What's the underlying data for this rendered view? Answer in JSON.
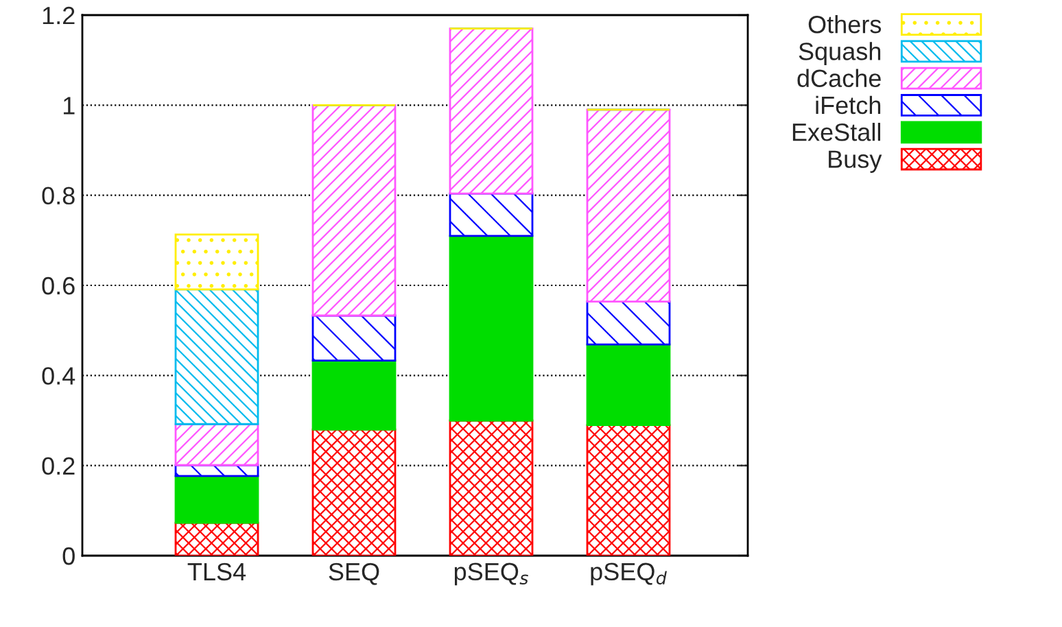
{
  "chart_data": {
    "type": "bar",
    "stacked": true,
    "categories": [
      "TLS4",
      "SEQ",
      "pSEQ$_{s}$",
      "pSEQ$_{d}$"
    ],
    "series": [
      {
        "name": "Busy",
        "color": "#ff0000",
        "values": [
          0.073,
          0.28,
          0.3,
          0.29
        ]
      },
      {
        "name": "ExeStall",
        "color": "#00dd00",
        "values": [
          0.104,
          0.153,
          0.41,
          0.179
        ]
      },
      {
        "name": "iFetch",
        "color": "#0000ff",
        "values": [
          0.024,
          0.1,
          0.094,
          0.095
        ]
      },
      {
        "name": "dCache",
        "color": "#ff55ff",
        "values": [
          0.091,
          0.467,
          0.366,
          0.426
        ]
      },
      {
        "name": "Squash",
        "color": "#00bbee",
        "values": [
          0.299,
          0,
          0,
          0
        ]
      },
      {
        "name": "Others",
        "color": "#ffee00",
        "values": [
          0.122,
          0,
          0,
          0
        ]
      }
    ],
    "ylim": [
      0,
      1.2
    ],
    "yticks": [
      0,
      0.2,
      0.4,
      0.6,
      0.8,
      1,
      1.2
    ],
    "grid": "y",
    "legend": "top right"
  }
}
